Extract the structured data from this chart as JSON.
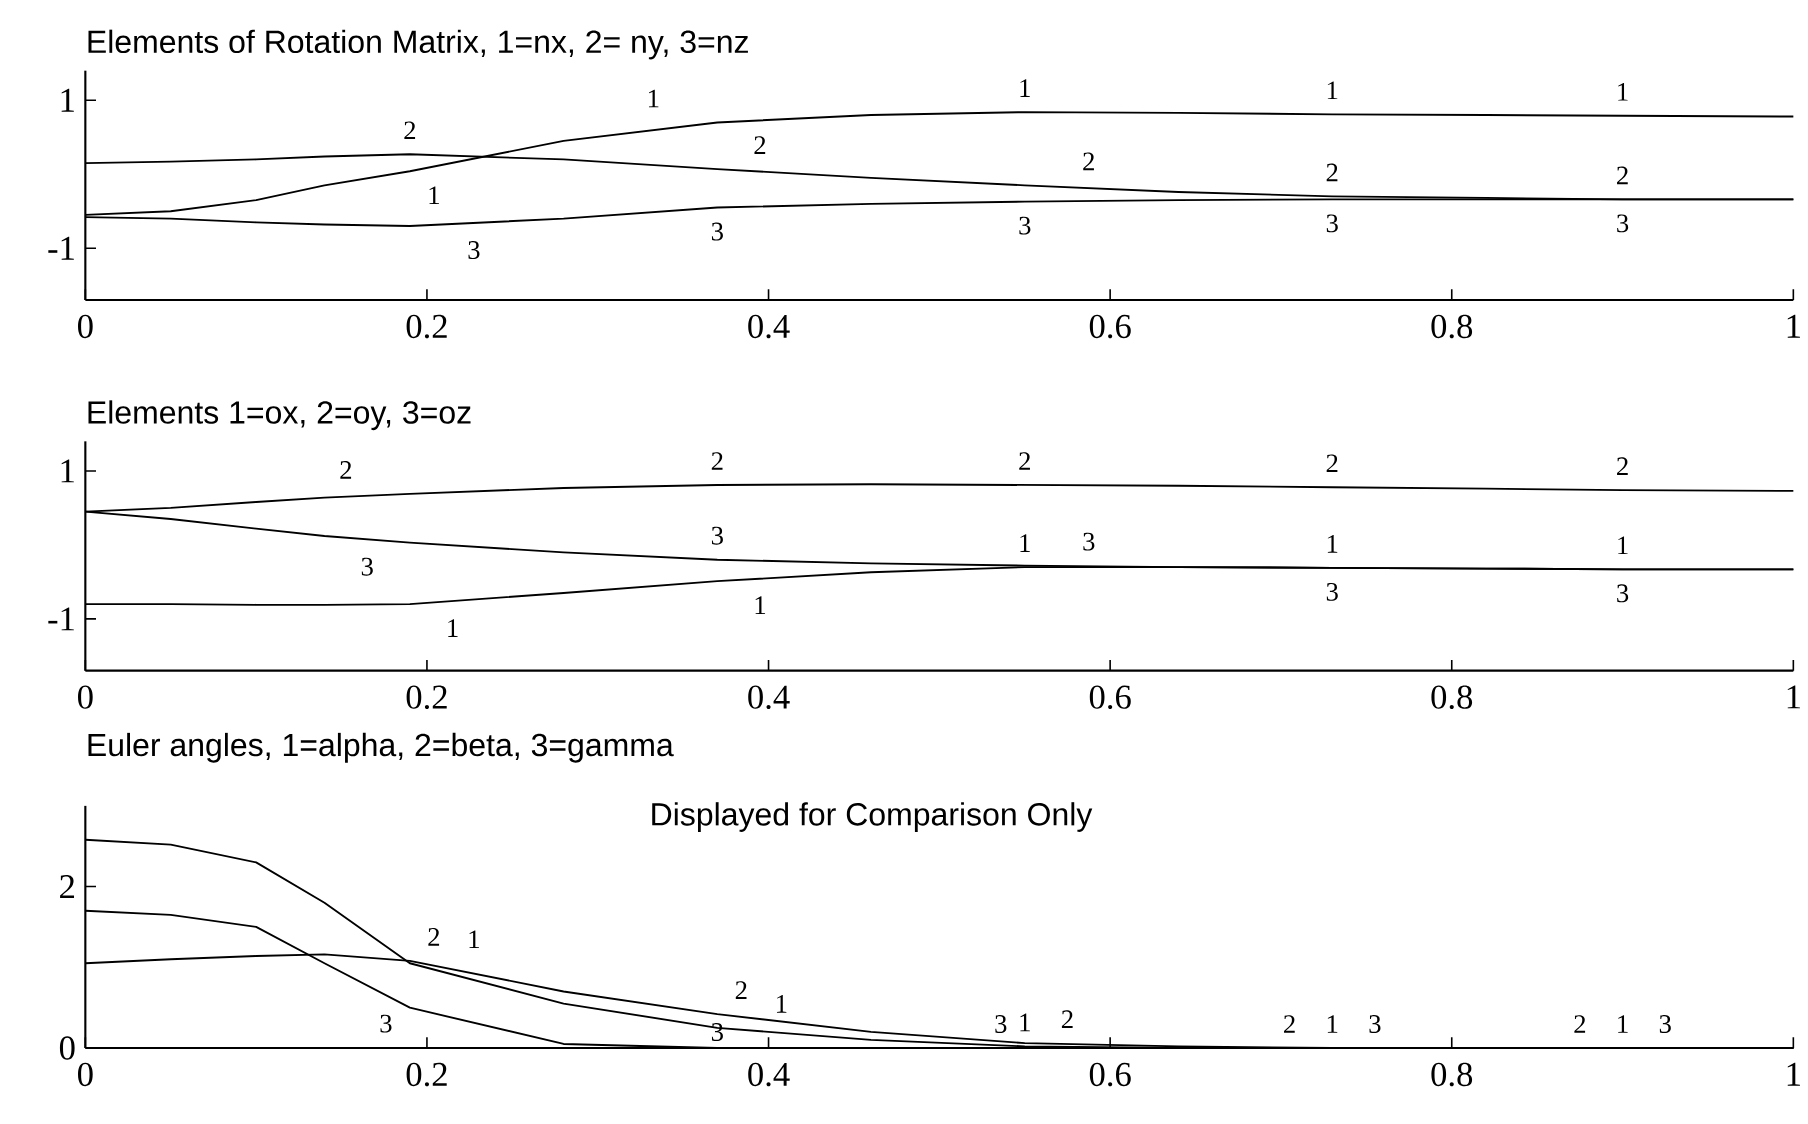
{
  "chart_data": [
    {
      "type": "line",
      "title": "Elements of Rotation Matrix, 1=nx, 2= ny, 3=nz",
      "x": [
        0,
        0.05,
        0.1,
        0.14,
        0.19,
        0.28,
        0.37,
        0.46,
        0.55,
        0.64,
        0.73,
        0.82,
        0.9,
        1.0
      ],
      "xlim": [
        0,
        1
      ],
      "xticks": [
        0,
        0.2,
        0.4,
        0.6,
        0.8,
        1
      ],
      "ylim": [
        -1.7,
        1.4
      ],
      "yticks": [
        -1,
        1
      ],
      "series": [
        {
          "name": "1",
          "color": "#000000",
          "values": [
            -0.55,
            -0.5,
            -0.35,
            -0.15,
            0.04,
            0.45,
            0.7,
            0.8,
            0.84,
            0.83,
            0.81,
            0.8,
            0.79,
            0.78
          ]
        },
        {
          "name": "2",
          "color": "#000000",
          "values": [
            0.15,
            0.17,
            0.2,
            0.24,
            0.27,
            0.2,
            0.07,
            -0.05,
            -0.15,
            -0.24,
            -0.3,
            -0.32,
            -0.34,
            -0.34
          ]
        },
        {
          "name": "3",
          "color": "#000000",
          "values": [
            -0.58,
            -0.6,
            -0.65,
            -0.68,
            -0.7,
            -0.6,
            -0.45,
            -0.4,
            -0.37,
            -0.35,
            -0.34,
            -0.34,
            -0.34,
            -0.34
          ]
        }
      ]
    },
    {
      "type": "line",
      "title": "Elements 1=ox, 2=oy, 3=oz",
      "x": [
        0,
        0.05,
        0.1,
        0.14,
        0.19,
        0.28,
        0.37,
        0.46,
        0.55,
        0.64,
        0.73,
        0.82,
        0.9,
        1.0
      ],
      "xlim": [
        0,
        1
      ],
      "xticks": [
        0,
        0.2,
        0.4,
        0.6,
        0.8,
        1
      ],
      "ylim": [
        -1.7,
        1.4
      ],
      "yticks": [
        -1,
        1
      ],
      "series": [
        {
          "name": "1",
          "color": "#000000",
          "values": [
            -0.8,
            -0.8,
            -0.81,
            -0.81,
            -0.8,
            -0.65,
            -0.49,
            -0.37,
            -0.3,
            -0.3,
            -0.31,
            -0.32,
            -0.33,
            -0.33
          ]
        },
        {
          "name": "2",
          "color": "#000000",
          "values": [
            0.45,
            0.5,
            0.58,
            0.64,
            0.69,
            0.77,
            0.81,
            0.82,
            0.81,
            0.8,
            0.78,
            0.76,
            0.74,
            0.73
          ]
        },
        {
          "name": "3",
          "color": "#000000",
          "values": [
            0.45,
            0.35,
            0.22,
            0.12,
            0.03,
            -0.1,
            -0.2,
            -0.25,
            -0.28,
            -0.3,
            -0.31,
            -0.32,
            -0.33,
            -0.33
          ]
        }
      ]
    },
    {
      "type": "line",
      "title": "Euler angles, 1=alpha, 2=beta, 3=gamma",
      "subtitle": "Displayed for Comparison Only",
      "x": [
        0,
        0.05,
        0.1,
        0.14,
        0.19,
        0.28,
        0.37,
        0.46,
        0.55,
        0.64,
        0.73,
        0.82,
        0.9,
        1.0
      ],
      "xlim": [
        0,
        1
      ],
      "xticks": [
        0,
        0.2,
        0.4,
        0.6,
        0.8,
        1
      ],
      "ylim": [
        0,
        3
      ],
      "yticks": [
        0,
        2
      ],
      "series": [
        {
          "name": "1",
          "color": "#000000",
          "values": [
            2.58,
            2.52,
            2.3,
            1.8,
            1.05,
            0.55,
            0.25,
            0.1,
            0.02,
            0,
            0,
            0,
            0,
            0
          ]
        },
        {
          "name": "2",
          "color": "#000000",
          "values": [
            1.05,
            1.1,
            1.14,
            1.16,
            1.08,
            0.7,
            0.42,
            0.2,
            0.06,
            0.02,
            0,
            0,
            0,
            0
          ]
        },
        {
          "name": "3",
          "color": "#000000",
          "values": [
            1.7,
            1.65,
            1.5,
            1.05,
            0.5,
            0.05,
            0,
            0,
            0,
            0,
            0,
            0,
            0,
            0
          ]
        }
      ]
    }
  ]
}
